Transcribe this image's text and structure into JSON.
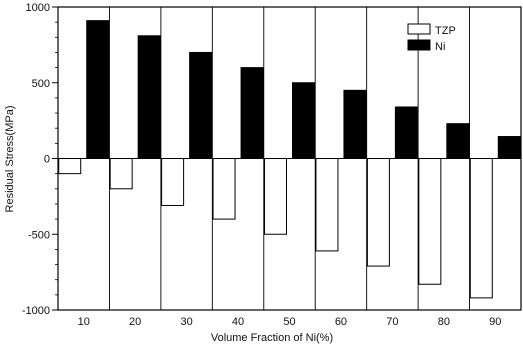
{
  "chart_data": {
    "type": "bar",
    "xlabel": "Volume Fraction of Ni(%)",
    "ylabel": "Residual Stress(MPa)",
    "categories": [
      "10",
      "20",
      "30",
      "40",
      "50",
      "60",
      "70",
      "80",
      "90"
    ],
    "ylim": [
      -1000,
      1000
    ],
    "yticks": [
      -1000,
      -500,
      0,
      500,
      1000
    ],
    "grid": "vertical separators between categories",
    "legend_position": "top-right",
    "series": [
      {
        "name": "TZP",
        "values": [
          -100,
          -200,
          -310,
          -400,
          -500,
          -610,
          -710,
          -830,
          -920
        ],
        "color": "#ffffff"
      },
      {
        "name": "Ni",
        "values": [
          910,
          810,
          700,
          600,
          500,
          450,
          340,
          230,
          145
        ],
        "color": "#000000"
      }
    ]
  }
}
